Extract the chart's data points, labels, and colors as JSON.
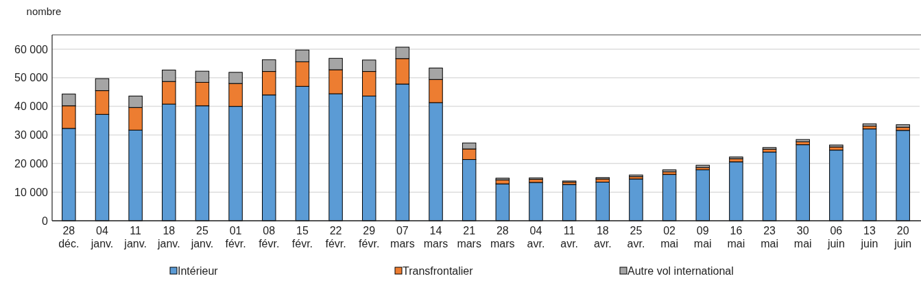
{
  "chart_data": {
    "type": "bar",
    "stacked": true,
    "ylabel": "nombre",
    "categories": [
      "28 déc.",
      "04 janv.",
      "11 janv.",
      "18 janv.",
      "25 janv.",
      "01 févr.",
      "08 févr.",
      "15 févr.",
      "22 févr.",
      "29 févr.",
      "07 mars",
      "14 mars",
      "21 mars",
      "28 mars",
      "04 avr.",
      "11 avr.",
      "18 avr.",
      "25 avr.",
      "02 mai",
      "09 mai",
      "16 mai",
      "23 mai",
      "30 mai",
      "06 juin",
      "13 juin",
      "20 juin"
    ],
    "series": [
      {
        "name": "Intérieur",
        "color": "#5b9bd5",
        "values": [
          32300,
          37200,
          31700,
          40800,
          40200,
          40000,
          44000,
          47000,
          44400,
          43600,
          47800,
          41300,
          21400,
          12900,
          13400,
          12700,
          13500,
          14600,
          16200,
          17800,
          20600,
          24000,
          26600,
          24700,
          32100,
          31600
        ]
      },
      {
        "name": "Transfrontalier",
        "color": "#ed7d31",
        "values": [
          7900,
          8300,
          7900,
          7900,
          8200,
          8000,
          8200,
          8600,
          8400,
          8600,
          8900,
          8100,
          3700,
          1400,
          1100,
          800,
          1100,
          800,
          900,
          800,
          1100,
          1000,
          1000,
          1100,
          1000,
          1100
        ]
      },
      {
        "name": "Autre vol international",
        "color": "#a5a5a5",
        "values": [
          4100,
          4200,
          4000,
          4000,
          3900,
          3900,
          4100,
          4100,
          4000,
          4000,
          4000,
          4000,
          2100,
          600,
          500,
          400,
          500,
          600,
          700,
          800,
          600,
          600,
          800,
          700,
          800,
          900
        ]
      }
    ],
    "ylim": [
      0,
      65000
    ],
    "yticks": [
      0,
      {
        "value": 10000,
        "label": "10 000"
      },
      {
        "value": 20000,
        "label": "20 000"
      },
      {
        "value": 30000,
        "label": "30 000"
      },
      {
        "value": 40000,
        "label": "40 000"
      },
      {
        "value": 50000,
        "label": "50 000"
      },
      {
        "value": 60000,
        "label": "60 000"
      }
    ],
    "grid": "y",
    "legend": "bottom"
  }
}
